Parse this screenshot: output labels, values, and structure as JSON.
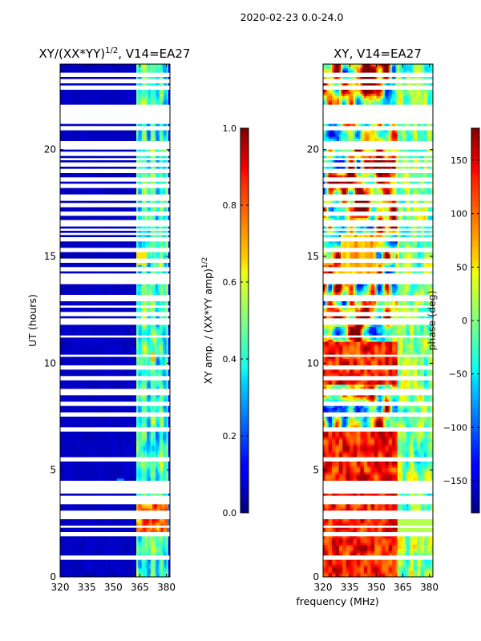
{
  "chart_data": [
    {
      "type": "heatmap",
      "id": "amp",
      "title_prefix": "XY/(XX*YY)",
      "title_sup": "1/2",
      "title_suffix": ", V14=EA27",
      "xlabel": "",
      "ylabel": "UT (hours)",
      "xlim": [
        320,
        382
      ],
      "ylim": [
        0,
        24
      ],
      "xticks": [
        320,
        335,
        350,
        365,
        380
      ],
      "yticks": [
        0,
        5,
        10,
        15,
        20
      ],
      "colorbar": {
        "label_prefix": "XY amp. / (XX*YY amp)",
        "label_sup": "1/2",
        "range": [
          0.0,
          1.0
        ],
        "ticks": [
          0.0,
          0.2,
          0.4,
          0.6,
          0.8,
          1.0
        ],
        "tick_labels": [
          "0.0",
          "0.2",
          "0.4",
          "0.6",
          "0.8",
          "1.0"
        ]
      },
      "colormap": "jet",
      "description": "Amplitude ratio low (~0.05) below 363 MHz; bright band (~0.3-0.6) at 363-380 MHz; red spikes (~0.9) near 365-380 MHz around UT 2-3.7 h"
    },
    {
      "type": "heatmap",
      "id": "phase",
      "title": "XY, V14=EA27",
      "xlabel": "frequency (MHz)",
      "ylabel": "",
      "xlim": [
        320,
        382
      ],
      "ylim": [
        0,
        24
      ],
      "xticks": [
        320,
        335,
        350,
        365,
        380
      ],
      "yticks": [
        0,
        5,
        10,
        15,
        20
      ],
      "colorbar": {
        "label": "phase (deg)",
        "range": [
          -180,
          180
        ],
        "ticks": [
          -150,
          -100,
          -50,
          0,
          50,
          100,
          150
        ],
        "tick_labels": [
          "−150",
          "−100",
          "−50",
          "0",
          "50",
          "100",
          "150"
        ]
      },
      "colormap": "jet"
    }
  ],
  "figure": {
    "suptitle": "2020-02-23 0.0-24.0"
  },
  "flagged_rows_ut": [
    0.9,
    1.95,
    2.0,
    2.05,
    2.35,
    2.8,
    3.0,
    3.5,
    3.7,
    3.95,
    4.0,
    4.05,
    4.1,
    4.3,
    4.45,
    5.5,
    6.9,
    7.6,
    8.1,
    8.55,
    8.7,
    9.3,
    9.8,
    10.35,
    11.25,
    11.9,
    12.0,
    12.3,
    12.65,
    12.95,
    13.0,
    13.1,
    13.8,
    13.9,
    14.1,
    14.4,
    14.8,
    15.3,
    15.8,
    16.05,
    16.25,
    16.45,
    16.6,
    17.0,
    17.4,
    17.7,
    17.8,
    18.3,
    18.6,
    19.0,
    19.3,
    19.55,
    19.8,
    20.1,
    20.3,
    21.0,
    21.3,
    21.5,
    21.7,
    21.85,
    22.0,
    22.9,
    23.2,
    23.5
  ]
}
